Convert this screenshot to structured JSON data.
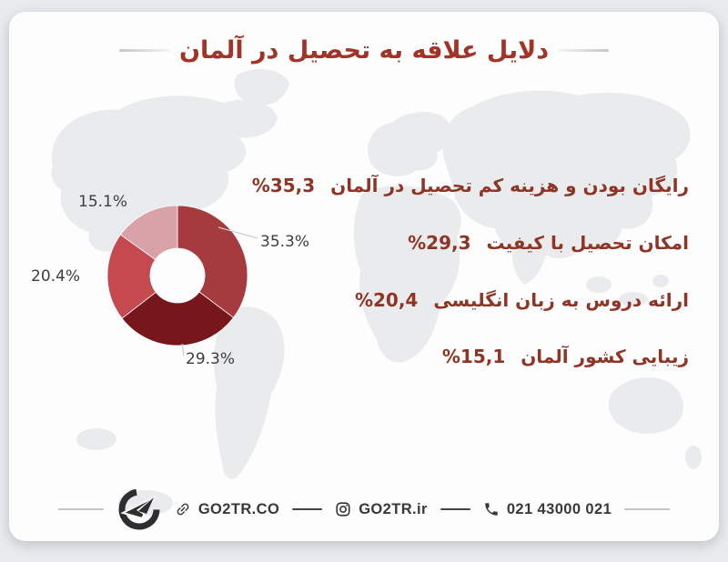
{
  "colors": {
    "page_bg": "#e9ebee",
    "card_bg": "#fdfdfe",
    "title_text": "#a43327",
    "reason_text": "#8f3526",
    "chart_label_text": "#3e3e40",
    "footer_text": "#39393b",
    "map_fill": "#eaebed"
  },
  "title": {
    "text": "دلایل علاقه به تحصیل در آلمان"
  },
  "chart_data": {
    "type": "pie",
    "variant": "donut",
    "title": "دلایل علاقه به تحصیل در آلمان",
    "labels": [
      "35.3%",
      "29.3%",
      "20.4%",
      "15.1%"
    ],
    "values": [
      35.3,
      29.3,
      20.4,
      15.1
    ],
    "colors": [
      "#a63b3f",
      "#77171b",
      "#c54a50",
      "#d9a1a8"
    ],
    "start_angle_deg": -90,
    "direction": "clockwise",
    "inner_radius_ratio": 0.39,
    "legend": false,
    "series_meaning": [
      {
        "label": "35.3%",
        "reason": "رایگان بودن و هزینه کم تحصیل در آلمان"
      },
      {
        "label": "29.3%",
        "reason": "امکان تحصیل با کیفیت"
      },
      {
        "label": "20.4%",
        "reason": "ارائه دروس به زبان انگلیسی"
      },
      {
        "label": "15.1%",
        "reason": "زیبایی کشور آلمان"
      }
    ]
  },
  "reasons": [
    {
      "text": "رایگان بودن و هزینه کم تحصیل در آلمان",
      "value": "%35,3"
    },
    {
      "text": "امکان تحصیل با کیفیت",
      "value": "%29,3"
    },
    {
      "text": "ارائه دروس به زبان انگلیسی",
      "value": "%20,4"
    },
    {
      "text": "زیبایی کشور آلمان",
      "value": "%15,1"
    }
  ],
  "footer": {
    "website": "GO2TR.CO",
    "instagram": "GO2TR.ir",
    "phone": "021 43000 021",
    "icons": [
      "go2tr-logo",
      "link-icon",
      "instagram-icon",
      "phone-icon"
    ]
  }
}
